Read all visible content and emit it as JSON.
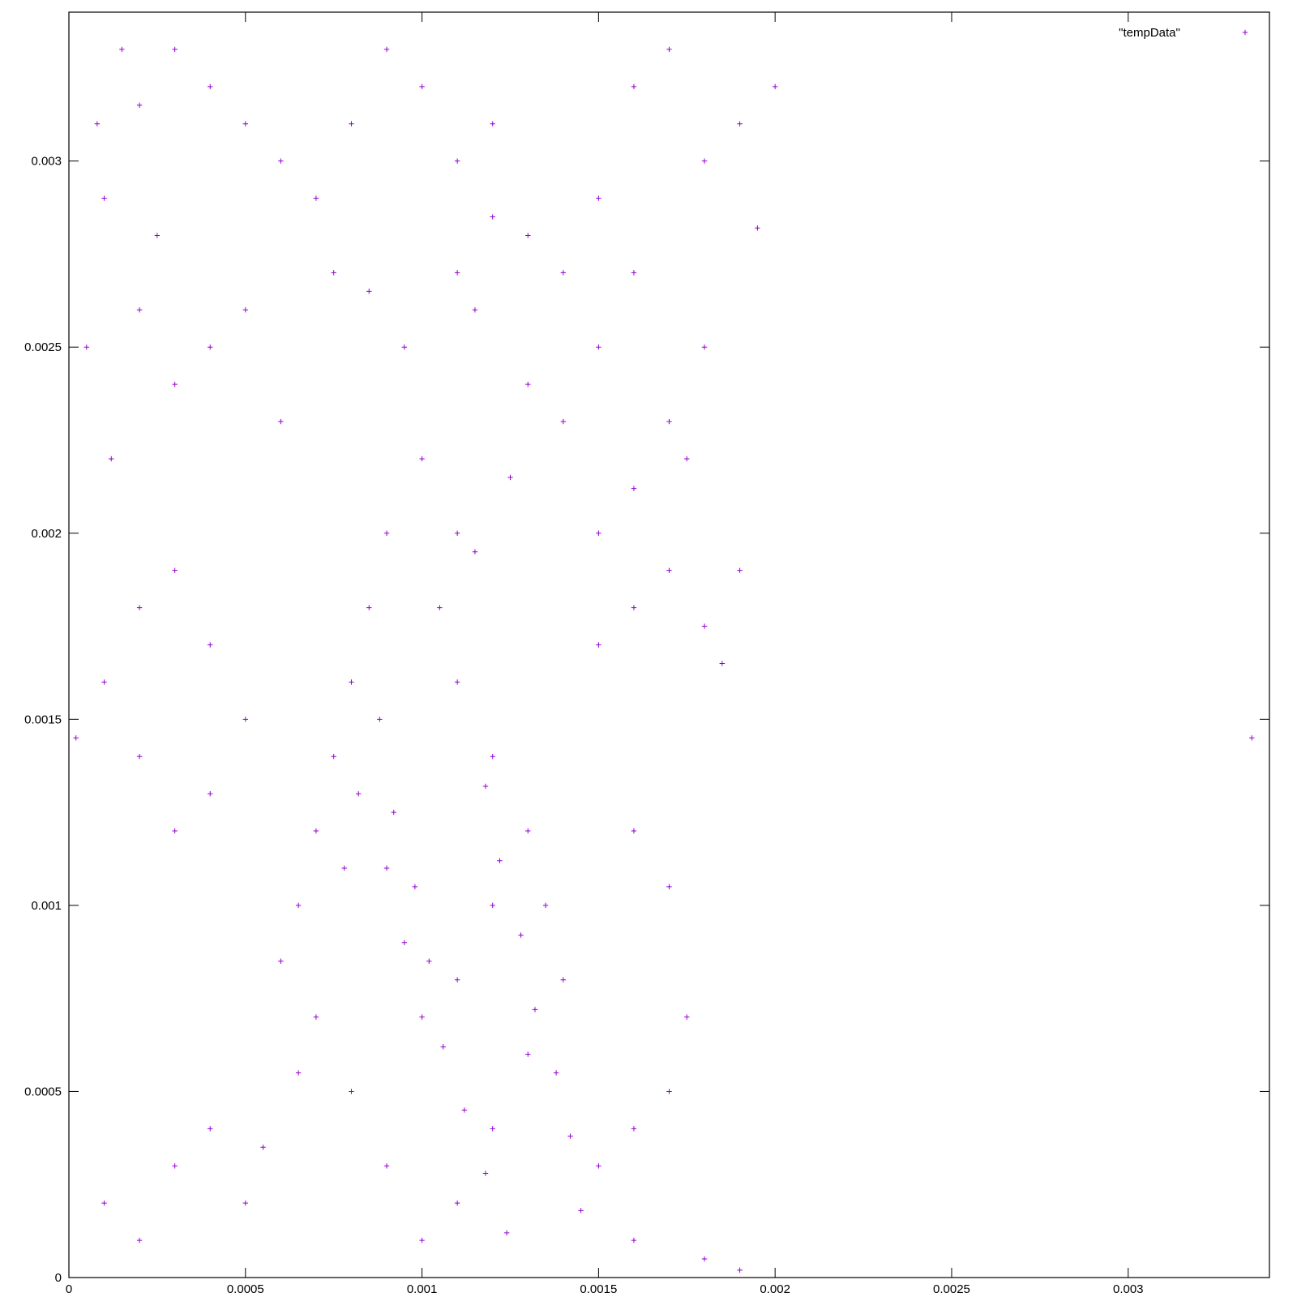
{
  "chart_data": {
    "type": "scatter",
    "title": "",
    "xlabel": "",
    "ylabel": "",
    "xlim": [
      0,
      0.0034
    ],
    "ylim": [
      0,
      0.0034
    ],
    "xticks": [
      0,
      0.0005,
      0.001,
      0.0015,
      0.002,
      0.0025,
      0.003
    ],
    "xtick_labels": [
      "0",
      "0.0005",
      "0.001",
      "0.0015",
      "0.002",
      "0.0025",
      "0.003"
    ],
    "yticks": [
      0,
      0.0005,
      0.001,
      0.0015,
      0.002,
      0.0025,
      0.003
    ],
    "ytick_labels": [
      "0",
      "0.0005",
      "0.001",
      "0.0015",
      "0.002",
      "0.0025",
      "0.003"
    ],
    "grid": false,
    "legend_position": "top-right",
    "series": [
      {
        "name": "\"tempData\"",
        "marker": "plus",
        "color": "#9400d3",
        "points": [
          [
            2e-05,
            0.00145
          ],
          [
            0.00335,
            0.00145
          ],
          [
            5e-05,
            0.0025
          ],
          [
            8e-05,
            0.0031
          ],
          [
            0.0001,
            0.0029
          ],
          [
            0.00012,
            0.0022
          ],
          [
            0.00015,
            0.0033
          ],
          [
            0.0002,
            0.00315
          ],
          [
            0.00025,
            0.0028
          ],
          [
            0.0003,
            0.0033
          ],
          [
            0.0004,
            0.0032
          ],
          [
            0.0005,
            0.0031
          ],
          [
            0.0006,
            0.003
          ],
          [
            0.0007,
            0.0029
          ],
          [
            0.00075,
            0.0027
          ],
          [
            0.0008,
            0.0031
          ],
          [
            0.0009,
            0.0033
          ],
          [
            0.001,
            0.0032
          ],
          [
            0.0011,
            0.003
          ],
          [
            0.0012,
            0.0031
          ],
          [
            0.0013,
            0.0028
          ],
          [
            0.0014,
            0.0027
          ],
          [
            0.0015,
            0.0029
          ],
          [
            0.0016,
            0.0032
          ],
          [
            0.0017,
            0.0033
          ],
          [
            0.0018,
            0.003
          ],
          [
            0.0019,
            0.0031
          ],
          [
            0.002,
            0.0032
          ],
          [
            0.00195,
            0.00282
          ],
          [
            0.0018,
            0.0025
          ],
          [
            0.0017,
            0.0023
          ],
          [
            0.0016,
            0.00212
          ],
          [
            0.00175,
            0.0022
          ],
          [
            0.0015,
            0.002
          ],
          [
            0.0013,
            0.0024
          ],
          [
            0.00115,
            0.0026
          ],
          [
            0.001,
            0.0022
          ],
          [
            0.0009,
            0.002
          ],
          [
            0.00085,
            0.0018
          ],
          [
            0.0008,
            0.0016
          ],
          [
            0.00075,
            0.0014
          ],
          [
            0.0007,
            0.0012
          ],
          [
            0.00065,
            0.001
          ],
          [
            0.0006,
            0.00085
          ],
          [
            0.0007,
            0.0007
          ],
          [
            0.0008,
            0.0005
          ],
          [
            0.0009,
            0.0003
          ],
          [
            0.001,
            0.0001
          ],
          [
            0.0011,
            0.0002
          ],
          [
            0.0012,
            0.0004
          ],
          [
            0.0013,
            0.0006
          ],
          [
            0.0014,
            0.0008
          ],
          [
            0.00135,
            0.001
          ],
          [
            0.0013,
            0.0012
          ],
          [
            0.0012,
            0.0014
          ],
          [
            0.0011,
            0.0016
          ],
          [
            0.00105,
            0.0018
          ],
          [
            0.0011,
            0.002
          ],
          [
            0.0009,
            0.0011
          ],
          [
            0.00095,
            0.0009
          ],
          [
            0.001,
            0.0007
          ],
          [
            0.0011,
            0.0008
          ],
          [
            0.0012,
            0.001
          ],
          [
            0.0005,
            0.0002
          ],
          [
            0.0004,
            0.0004
          ],
          [
            0.0003,
            0.0003
          ],
          [
            0.0002,
            0.0001
          ],
          [
            0.0001,
            0.0002
          ],
          [
            0.0003,
            0.0012
          ],
          [
            0.0002,
            0.0014
          ],
          [
            0.0001,
            0.0016
          ],
          [
            0.0002,
            0.0018
          ],
          [
            0.0003,
            0.0019
          ],
          [
            0.0004,
            0.0017
          ],
          [
            0.0005,
            0.0015
          ],
          [
            0.0004,
            0.0013
          ],
          [
            0.0015,
            0.0017
          ],
          [
            0.0016,
            0.0018
          ],
          [
            0.0017,
            0.0019
          ],
          [
            0.0018,
            0.00175
          ],
          [
            0.0019,
            0.0019
          ],
          [
            0.00185,
            0.00165
          ],
          [
            0.0016,
            0.0012
          ],
          [
            0.0017,
            0.00105
          ],
          [
            0.00175,
            0.0007
          ],
          [
            0.0017,
            0.0005
          ],
          [
            0.0016,
            0.0004
          ],
          [
            0.0015,
            0.0003
          ],
          [
            0.0016,
            0.0001
          ],
          [
            0.0018,
            5e-05
          ],
          [
            0.0019,
            2e-05
          ],
          [
            0.00145,
            0.00018
          ],
          [
            0.00055,
            0.00035
          ],
          [
            0.00065,
            0.00055
          ],
          [
            0.0004,
            0.0025
          ],
          [
            0.0003,
            0.0024
          ],
          [
            0.0005,
            0.0026
          ],
          [
            0.0006,
            0.0023
          ],
          [
            0.0002,
            0.0026
          ],
          [
            0.0015,
            0.0025
          ],
          [
            0.0014,
            0.0023
          ],
          [
            0.00125,
            0.00215
          ],
          [
            0.00115,
            0.00195
          ],
          [
            0.0016,
            0.0027
          ],
          [
            0.0012,
            0.00285
          ],
          [
            0.0011,
            0.0027
          ],
          [
            0.00095,
            0.0025
          ],
          [
            0.00085,
            0.00265
          ],
          [
            0.00078,
            0.0011
          ],
          [
            0.00082,
            0.0013
          ],
          [
            0.00088,
            0.0015
          ],
          [
            0.00092,
            0.00125
          ],
          [
            0.00098,
            0.00105
          ],
          [
            0.00102,
            0.00085
          ],
          [
            0.00106,
            0.00062
          ],
          [
            0.00112,
            0.00045
          ],
          [
            0.00118,
            0.00028
          ],
          [
            0.00124,
            0.00012
          ],
          [
            0.00132,
            0.00072
          ],
          [
            0.00138,
            0.00055
          ],
          [
            0.00142,
            0.00038
          ],
          [
            0.00128,
            0.00092
          ],
          [
            0.00122,
            0.00112
          ],
          [
            0.00118,
            0.00132
          ]
        ]
      }
    ]
  }
}
